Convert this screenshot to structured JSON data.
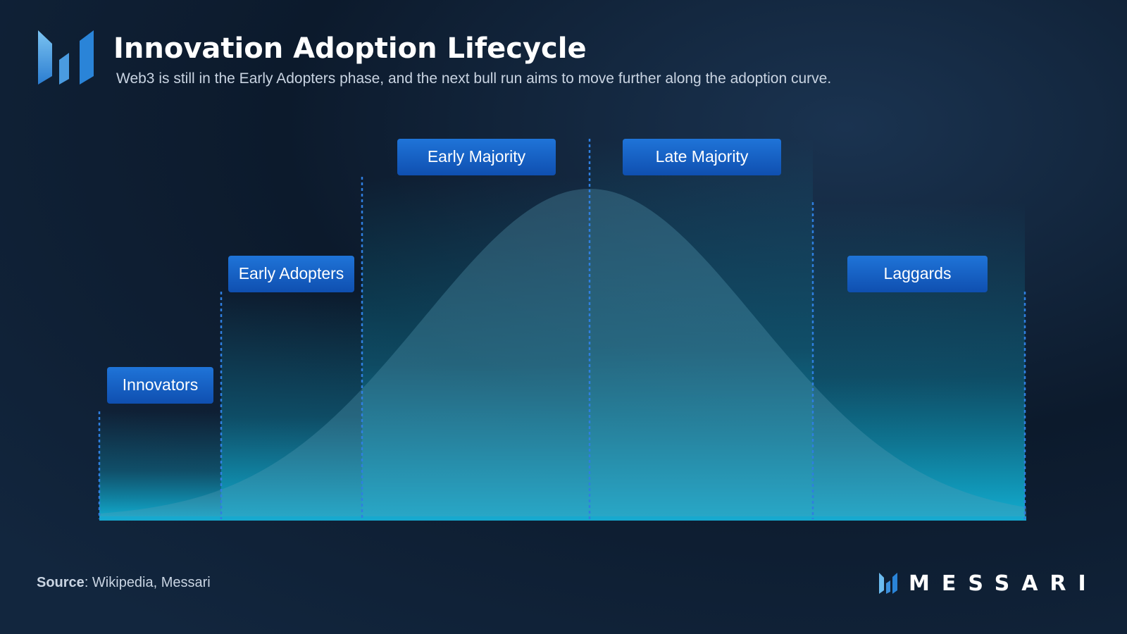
{
  "header": {
    "title": "Innovation Adoption Lifecycle",
    "subtitle": "Web3 is still in the Early Adopters phase, and the next bull run aims to move further along the adoption curve."
  },
  "segments": [
    {
      "label": "Innovators"
    },
    {
      "label": "Early Adopters"
    },
    {
      "label": "Early Majority"
    },
    {
      "label": "Late Majority"
    },
    {
      "label": "Laggards"
    }
  ],
  "footer": {
    "source_label": "Source",
    "source_text": ": Wikipedia, Messari",
    "brand": "MESSARI"
  }
}
